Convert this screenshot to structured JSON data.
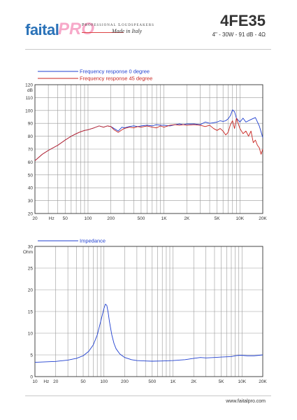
{
  "header": {
    "brand_part1": "faital",
    "brand_part2": "PRO",
    "tagline": "Professional Loudspeakers",
    "made_in": "Made in Italy",
    "model": "4FE35",
    "specs": "4\" - 30W - 91 dB - 4Ω"
  },
  "footer": {
    "url": "www.faitalpro.com"
  },
  "colors": {
    "series_0deg": "#1f3fd0",
    "series_45deg": "#c8231f",
    "impedance": "#1f3fd0",
    "grid": "#999999",
    "frame": "#333333"
  },
  "chart_data": [
    {
      "type": "line",
      "x_scale": "log",
      "xlim": [
        20,
        20000
      ],
      "ylim": [
        20,
        120
      ],
      "ylabel": "dB",
      "xlabel": "Hz",
      "x_tick_labels": [
        "20",
        "Hz",
        "50",
        "100",
        "200",
        "500",
        "1K",
        "2K",
        "5K",
        "10K",
        "20K"
      ],
      "y_tick_labels": [
        "20",
        "30",
        "40",
        "50",
        "60",
        "70",
        "80",
        "90",
        "100",
        "110",
        "120"
      ],
      "legend_position": "top-left",
      "grid": true,
      "series": [
        {
          "name": "Frequency response 0 degree",
          "x": [
            20,
            25,
            30,
            40,
            50,
            60,
            70,
            80,
            90,
            100,
            120,
            140,
            160,
            180,
            200,
            220,
            250,
            280,
            300,
            350,
            400,
            450,
            500,
            600,
            700,
            800,
            900,
            1000,
            1200,
            1400,
            1600,
            1800,
            2000,
            2500,
            3000,
            3500,
            4000,
            4500,
            5000,
            5500,
            6000,
            6500,
            7000,
            7500,
            8000,
            8500,
            9000,
            10000,
            11000,
            12000,
            14000,
            16000,
            18000,
            20000
          ],
          "y": [
            61,
            66,
            69,
            73,
            77,
            80,
            82,
            83.5,
            84.5,
            85,
            86.5,
            88,
            87,
            88,
            87.5,
            86,
            84,
            87,
            86.5,
            87.5,
            88,
            87.5,
            88,
            88.5,
            88,
            89,
            88.5,
            88.5,
            88,
            89,
            89.5,
            89,
            89.5,
            89.5,
            89,
            91,
            90,
            90.5,
            91,
            92,
            91.5,
            92,
            93.5,
            96,
            100.5,
            99,
            94,
            91,
            94,
            91,
            93,
            94.5,
            88,
            79
          ]
        },
        {
          "name": "Frequency response 45 degree",
          "x": [
            20,
            25,
            30,
            40,
            50,
            60,
            70,
            80,
            90,
            100,
            120,
            140,
            160,
            180,
            200,
            220,
            250,
            280,
            300,
            350,
            400,
            450,
            500,
            600,
            700,
            800,
            900,
            1000,
            1200,
            1400,
            1600,
            1800,
            2000,
            2500,
            3000,
            3500,
            4000,
            4500,
            5000,
            5500,
            6000,
            6500,
            7000,
            7500,
            8000,
            8500,
            9000,
            10000,
            11000,
            12000,
            13000,
            14000,
            15000,
            16000,
            17000,
            18000,
            19000,
            20000
          ],
          "y": [
            61,
            66,
            69,
            73,
            77,
            80,
            82,
            83.5,
            84.5,
            85,
            86.5,
            88,
            87,
            88,
            87.5,
            85,
            83,
            85,
            86,
            87,
            86.5,
            87.5,
            87,
            88,
            87,
            86.5,
            88,
            87,
            88.5,
            89,
            88.5,
            89,
            88.5,
            89,
            88.5,
            87.5,
            88.5,
            86,
            84.5,
            86,
            84,
            81,
            83,
            89,
            92,
            86,
            94,
            86,
            82,
            84,
            80,
            84,
            75,
            77,
            73,
            71,
            66,
            70
          ]
        }
      ]
    },
    {
      "type": "line",
      "x_scale": "log",
      "xlim": [
        10,
        20000
      ],
      "ylim": [
        0,
        30
      ],
      "ylabel": "Ohm",
      "xlabel": "Hz",
      "x_tick_labels": [
        "10",
        "Hz",
        "20",
        "50",
        "100",
        "200",
        "500",
        "1K",
        "2K",
        "5K",
        "10K",
        "20K"
      ],
      "y_tick_labels": [
        "0",
        "5",
        "10",
        "15",
        "20",
        "25",
        "30"
      ],
      "legend_position": "top-left",
      "grid": true,
      "series": [
        {
          "name": "Impedance",
          "x": [
            10,
            20,
            30,
            40,
            50,
            60,
            70,
            80,
            90,
            100,
            105,
            110,
            115,
            120,
            130,
            140,
            150,
            170,
            200,
            250,
            300,
            400,
            500,
            700,
            1000,
            1500,
            2000,
            2500,
            3000,
            4000,
            5000,
            7000,
            8000,
            9000,
            10000,
            12000,
            15000,
            20000
          ],
          "y": [
            3.3,
            3.5,
            3.8,
            4.2,
            4.8,
            5.8,
            7.3,
            9.6,
            12.8,
            15.7,
            16.7,
            16.4,
            14.8,
            12.7,
            9.6,
            7.6,
            6.4,
            5.2,
            4.4,
            3.9,
            3.7,
            3.6,
            3.55,
            3.6,
            3.7,
            3.9,
            4.2,
            4.4,
            4.3,
            4.4,
            4.5,
            4.6,
            4.8,
            4.9,
            4.9,
            4.8,
            4.8,
            5.0
          ]
        }
      ]
    }
  ]
}
